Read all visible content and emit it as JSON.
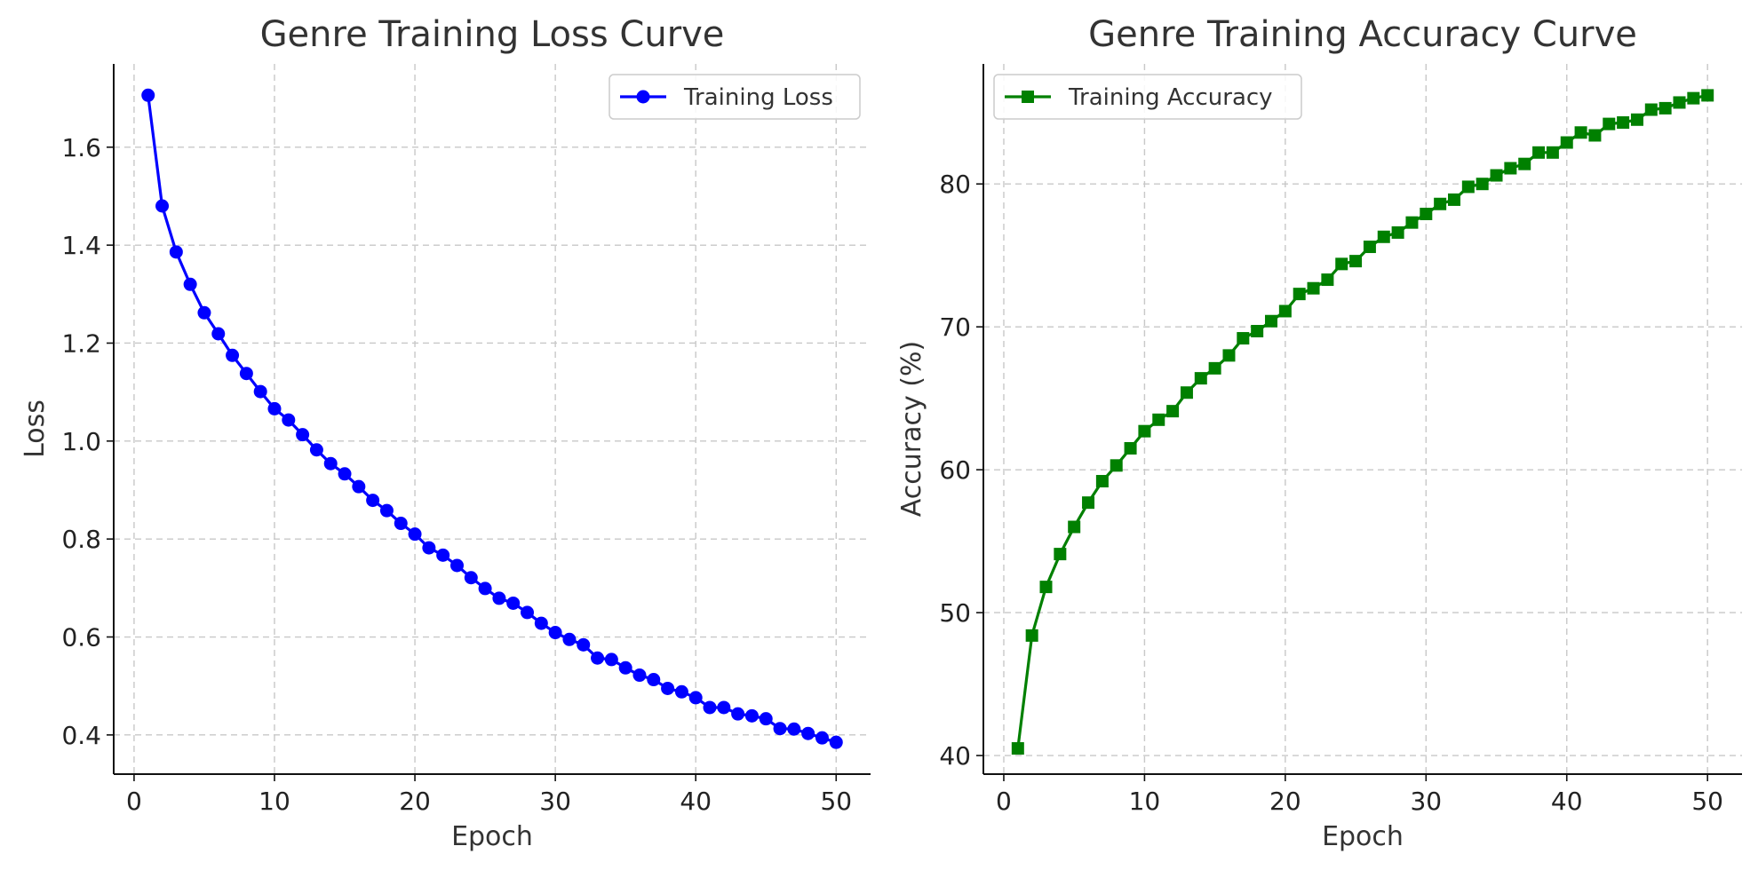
{
  "chart_data": [
    {
      "type": "line",
      "title": "Genre Training Loss Curve",
      "xlabel": "Epoch",
      "ylabel": "Loss",
      "xlim": [
        -1.45,
        52.45
      ],
      "ylim": [
        0.32,
        1.77
      ],
      "xticks": [
        0,
        10,
        20,
        30,
        40,
        50
      ],
      "yticks": [
        0.4,
        0.6,
        0.8,
        1.0,
        1.2,
        1.4,
        1.6
      ],
      "ytick_format": 1,
      "grid": true,
      "legend_position": "top-right",
      "x": [
        1,
        2,
        3,
        4,
        5,
        6,
        7,
        8,
        9,
        10,
        11,
        12,
        13,
        14,
        15,
        16,
        17,
        18,
        19,
        20,
        21,
        22,
        23,
        24,
        25,
        26,
        27,
        28,
        29,
        30,
        31,
        32,
        33,
        34,
        35,
        36,
        37,
        38,
        39,
        40,
        41,
        42,
        43,
        44,
        45,
        46,
        47,
        48,
        49,
        50
      ],
      "series": [
        {
          "name": "Training Loss",
          "color": "#0000ff",
          "marker": "circle",
          "values": [
            1.706,
            1.48,
            1.386,
            1.32,
            1.262,
            1.219,
            1.175,
            1.138,
            1.101,
            1.066,
            1.043,
            1.013,
            0.982,
            0.954,
            0.933,
            0.907,
            0.879,
            0.858,
            0.832,
            0.81,
            0.782,
            0.767,
            0.746,
            0.721,
            0.699,
            0.679,
            0.669,
            0.65,
            0.628,
            0.609,
            0.595,
            0.584,
            0.557,
            0.554,
            0.537,
            0.522,
            0.513,
            0.495,
            0.488,
            0.476,
            0.456,
            0.456,
            0.443,
            0.439,
            0.433,
            0.413,
            0.412,
            0.403,
            0.394,
            0.385
          ]
        }
      ]
    },
    {
      "type": "line",
      "title": "Genre Training Accuracy Curve",
      "xlabel": "Epoch",
      "ylabel": "Accuracy (%)",
      "xlim": [
        -1.45,
        52.45
      ],
      "ylim": [
        38.7,
        88.4
      ],
      "xticks": [
        0,
        10,
        20,
        30,
        40,
        50
      ],
      "yticks": [
        40,
        50,
        60,
        70,
        80
      ],
      "ytick_format": 0,
      "grid": true,
      "legend_position": "top-left",
      "x": [
        1,
        2,
        3,
        4,
        5,
        6,
        7,
        8,
        9,
        10,
        11,
        12,
        13,
        14,
        15,
        16,
        17,
        18,
        19,
        20,
        21,
        22,
        23,
        24,
        25,
        26,
        27,
        28,
        29,
        30,
        31,
        32,
        33,
        34,
        35,
        36,
        37,
        38,
        39,
        40,
        41,
        42,
        43,
        44,
        45,
        46,
        47,
        48,
        49,
        50
      ],
      "series": [
        {
          "name": "Training Accuracy",
          "color": "#008000",
          "marker": "square",
          "values": [
            40.5,
            48.4,
            51.8,
            54.1,
            56.0,
            57.7,
            59.2,
            60.3,
            61.5,
            62.7,
            63.5,
            64.1,
            65.4,
            66.4,
            67.1,
            68.0,
            69.2,
            69.7,
            70.4,
            71.1,
            72.3,
            72.7,
            73.3,
            74.4,
            74.6,
            75.6,
            76.3,
            76.6,
            77.3,
            77.9,
            78.6,
            78.9,
            79.8,
            80.0,
            80.6,
            81.1,
            81.4,
            82.2,
            82.2,
            82.9,
            83.6,
            83.4,
            84.2,
            84.3,
            84.5,
            85.2,
            85.3,
            85.7,
            86.0,
            86.2
          ]
        }
      ]
    }
  ]
}
